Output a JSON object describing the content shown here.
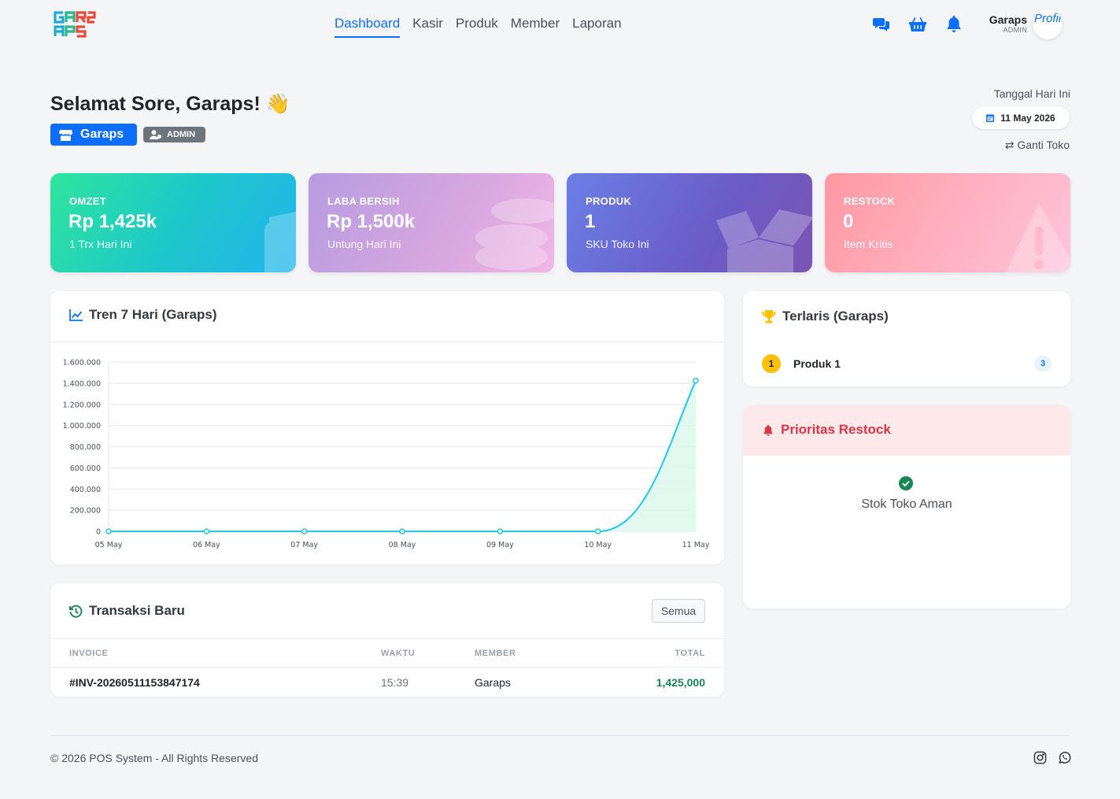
{
  "nav": {
    "links": [
      {
        "label": "Dashboard",
        "active": true
      },
      {
        "label": "Kasir"
      },
      {
        "label": "Produk"
      },
      {
        "label": "Member"
      },
      {
        "label": "Laporan"
      }
    ],
    "icons": [
      "chat-icon",
      "basket-icon",
      "bell-icon"
    ],
    "user_name": "Garaps",
    "user_role": "ADMIN",
    "avatar_alt": "Profil"
  },
  "header": {
    "greeting": "Selamat Sore, Garaps! 👋",
    "store_name": "Garaps",
    "role_badge": "ADMIN",
    "date_label": "Tanggal Hari Ini",
    "date_value": "11 May 2026",
    "switch_store": "Ganti Toko"
  },
  "stats": {
    "omzet": {
      "label": "OMZET",
      "value": "Rp 1,425k",
      "sub": "1 Trx Hari Ini",
      "icon": "wallet-icon"
    },
    "laba": {
      "label": "LABA BERSIH",
      "value": "Rp 1,500k",
      "sub": "Untung Hari Ini",
      "icon": "coins-icon"
    },
    "produk": {
      "label": "PRODUK",
      "value": "1",
      "sub": "SKU Toko Ini",
      "icon": "box-icon"
    },
    "restock": {
      "label": "RESTOCK",
      "value": "0",
      "sub": "Item Kritis",
      "icon": "warning-icon"
    }
  },
  "trend": {
    "title": "Tren 7 Hari (Garaps)"
  },
  "chart_data": {
    "type": "area",
    "categories": [
      "05 May",
      "06 May",
      "07 May",
      "08 May",
      "09 May",
      "10 May",
      "11 May"
    ],
    "values": [
      0,
      0,
      0,
      0,
      0,
      0,
      1425000
    ],
    "ylim": [
      0,
      1600000
    ],
    "yticks": [
      "0",
      "200.000",
      "400.000",
      "600.000",
      "800.000",
      "1.000.000",
      "1.200.000",
      "1.400.000",
      "1.600.000"
    ],
    "line_color": "#1ec8ee",
    "fill_color": "#d9f7ea",
    "grid": true,
    "legend": "none"
  },
  "transactions": {
    "title": "Transaksi Baru",
    "button": "Semua",
    "columns": [
      "INVOICE",
      "WAKTU",
      "MEMBER",
      "TOTAL"
    ],
    "rows": [
      {
        "invoice": "#INV-20260511153847174",
        "time": "15:39",
        "member": "Garaps",
        "total": "1,425,000"
      }
    ]
  },
  "top_products": {
    "title": "Terlaris (Garaps)",
    "items": [
      {
        "rank": "1",
        "name": "Produk 1",
        "qty": "3"
      }
    ]
  },
  "restock": {
    "title": "Prioritas Restock",
    "message": "Stok Toko Aman"
  },
  "footer": {
    "copyright": "© 2026 POS System - All Rights Reserved",
    "icons": [
      "instagram-icon",
      "whatsapp-icon"
    ]
  }
}
